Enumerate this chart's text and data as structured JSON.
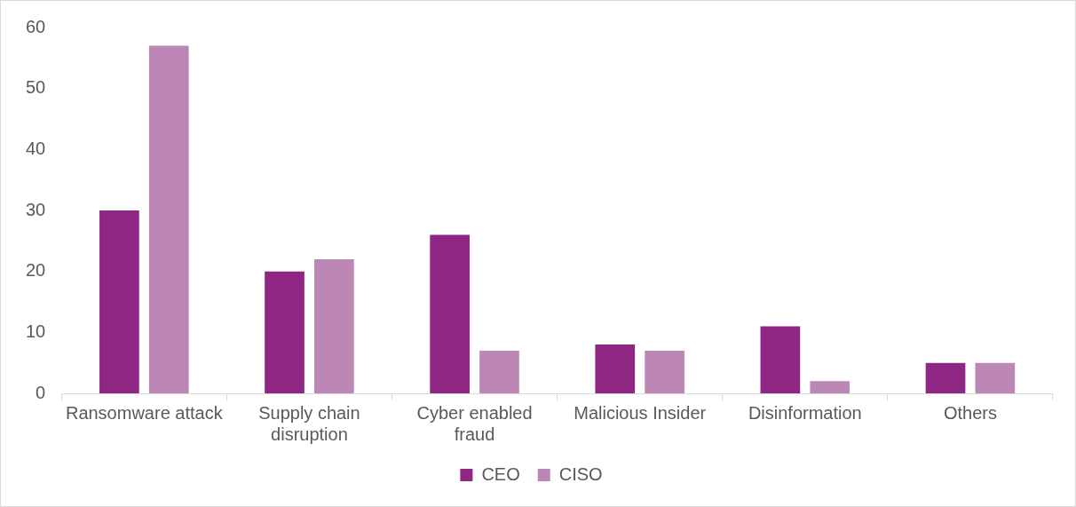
{
  "chart_data": {
    "type": "bar",
    "categories": [
      "Ransomware attack",
      "Supply chain disruption",
      "Cyber enabled fraud",
      "Malicious Insider",
      "Disinformation",
      "Others"
    ],
    "series": [
      {
        "name": "CEO",
        "color": "#8e2683",
        "values": [
          30,
          20,
          26,
          8,
          11,
          5
        ]
      },
      {
        "name": "CISO",
        "color": "#bc87b5",
        "values": [
          57,
          22,
          7,
          7,
          2,
          5
        ]
      }
    ],
    "ylim": [
      0,
      60
    ],
    "yticks": [
      0,
      10,
      20,
      30,
      40,
      50,
      60
    ],
    "grid": false,
    "legend": "bottom"
  }
}
